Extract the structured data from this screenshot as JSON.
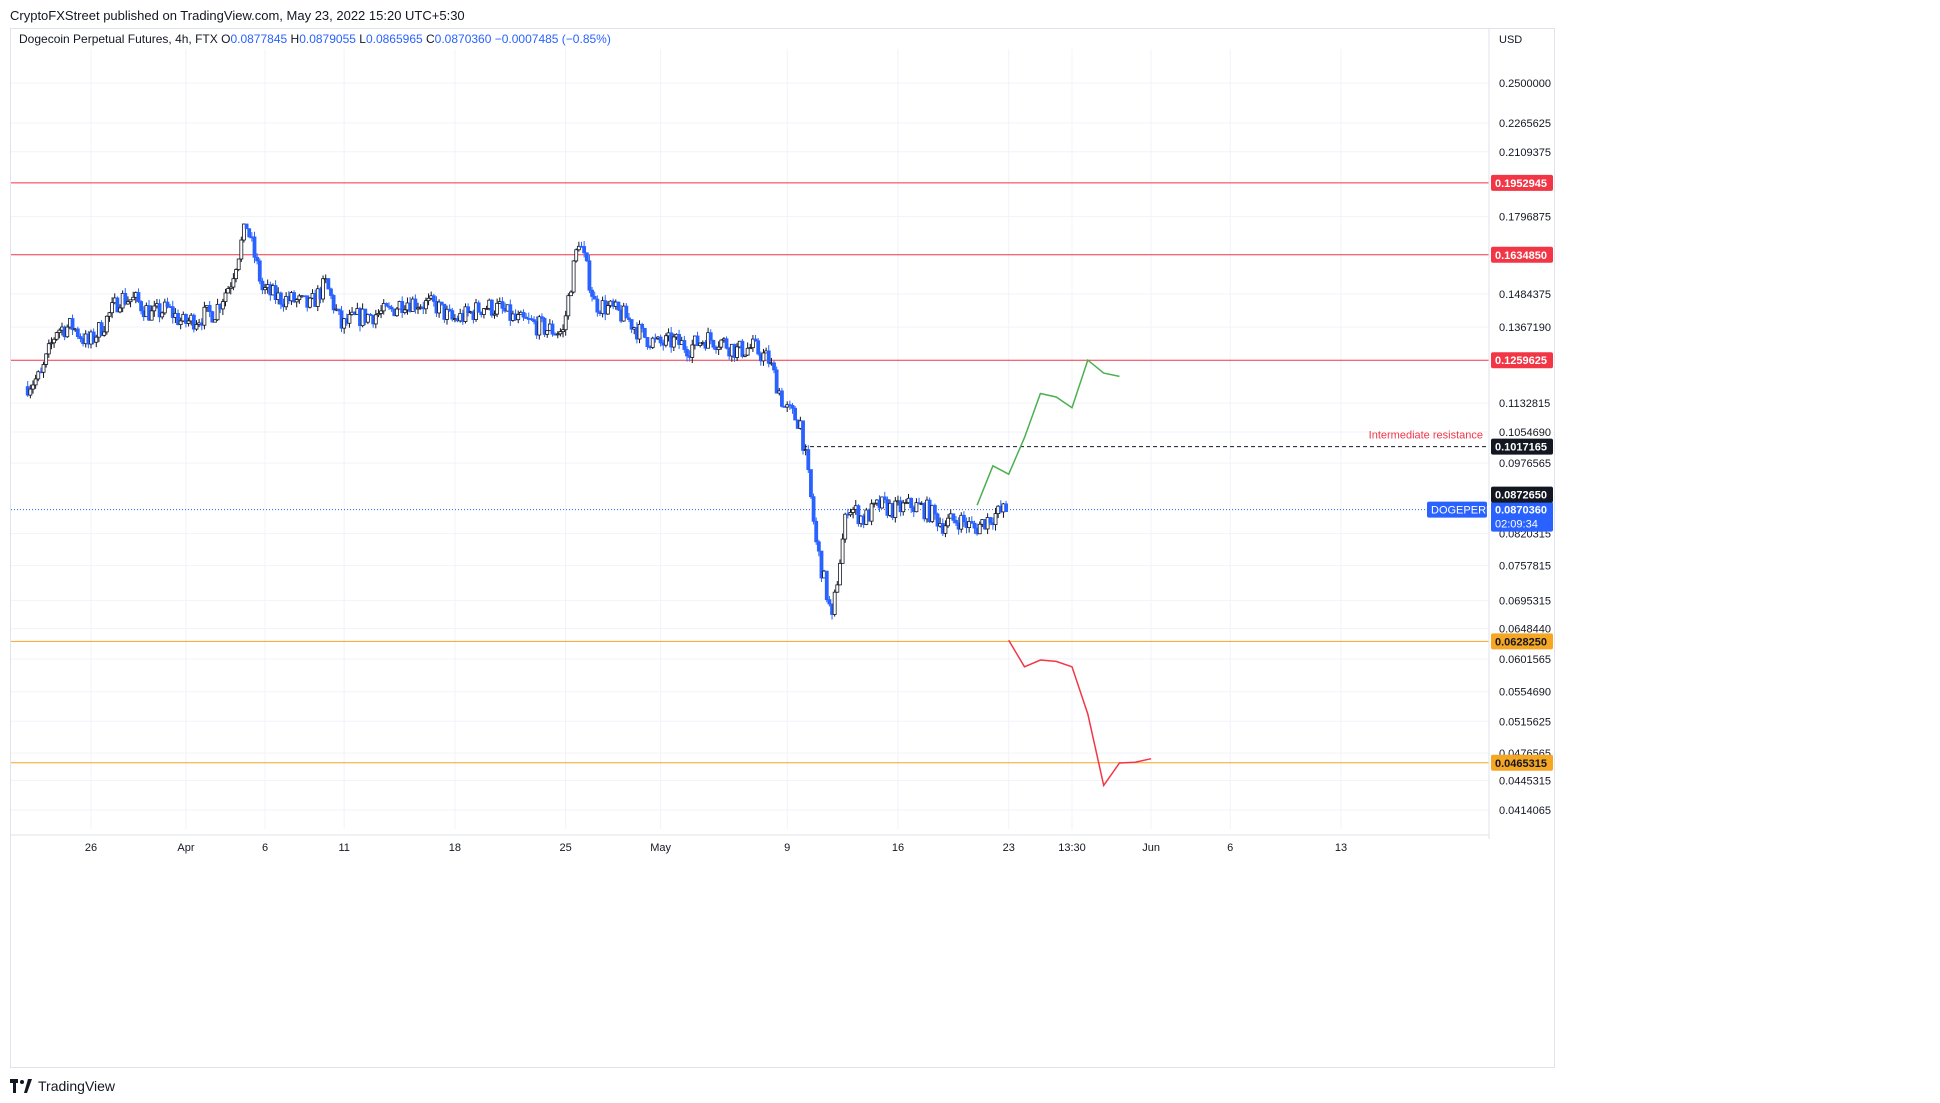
{
  "header": {
    "publisher_line": "CryptoFXStreet published on TradingView.com, May 23, 2022 15:20 UTC+5:30"
  },
  "footer": {
    "brand": "TradingView"
  },
  "colors": {
    "up_candle": "#131722",
    "down_candle": "#2962ff",
    "resistance_red": "#f23645",
    "support_orange": "#f5a623",
    "bull_path": "#4caf50",
    "bear_path": "#f23645",
    "last_price_blue": "#2962ff",
    "grid": "#f0f3fa"
  },
  "chart_data": {
    "type": "candlestick",
    "title": "Dogecoin Perpetual Futures, 4h, FTX",
    "ohlc_header": {
      "o_label": "O",
      "o_value": "0.0877845",
      "h_label": "H",
      "h_value": "0.0879055",
      "l_label": "L",
      "l_value": "0.0865965",
      "c_label": "C",
      "c_value": "0.0870360",
      "change": "−0.0007485 (−0.85%)"
    },
    "currency": "USD",
    "scale": "log",
    "ylim": [
      0.0395,
      0.272
    ],
    "y_ticks": [
      "0.2500000",
      "0.2265625",
      "0.2109375",
      "0.1796875",
      "0.1484375",
      "0.1367190",
      "0.1132815",
      "0.1054690",
      "0.0976565",
      "0.0820315",
      "0.0757815",
      "0.0695315",
      "0.0648440",
      "0.0601565",
      "0.0554690",
      "0.0515625",
      "0.0476565",
      "0.0445315",
      "0.0414065"
    ],
    "x_ticks": [
      "26",
      "Apr",
      "6",
      "11",
      "18",
      "25",
      "May",
      "9",
      "16",
      "23",
      "13:30",
      "Jun",
      "6",
      "13"
    ],
    "price_path": [
      [
        "Mar 22",
        0.118
      ],
      [
        "Mar 23",
        0.121
      ],
      [
        "Mar 24",
        0.136
      ],
      [
        "Mar 25",
        0.137
      ],
      [
        "Mar 26",
        0.131
      ],
      [
        "Mar 27",
        0.138
      ],
      [
        "Mar 28",
        0.147
      ],
      [
        "Mar 29",
        0.146
      ],
      [
        "Mar 30",
        0.141
      ],
      [
        "Mar 31",
        0.143
      ],
      [
        "Apr 1",
        0.138
      ],
      [
        "Apr 2",
        0.14
      ],
      [
        "Apr 3",
        0.142
      ],
      [
        "Apr 4",
        0.153
      ],
      [
        "Apr 5",
        0.176
      ],
      [
        "Apr 6",
        0.15
      ],
      [
        "Apr 7",
        0.147
      ],
      [
        "Apr 8",
        0.146
      ],
      [
        "Apr 9",
        0.144
      ],
      [
        "Apr 10",
        0.152
      ],
      [
        "Apr 11",
        0.137
      ],
      [
        "Apr 12",
        0.14
      ],
      [
        "Apr 13",
        0.141
      ],
      [
        "Apr 14",
        0.142
      ],
      [
        "Apr 15",
        0.146
      ],
      [
        "Apr 16",
        0.145
      ],
      [
        "Apr 17",
        0.144
      ],
      [
        "Apr 18",
        0.139
      ],
      [
        "Apr 19",
        0.141
      ],
      [
        "Apr 20",
        0.144
      ],
      [
        "Apr 21",
        0.143
      ],
      [
        "Apr 22",
        0.139
      ],
      [
        "Apr 23",
        0.138
      ],
      [
        "Apr 24",
        0.136
      ],
      [
        "Apr 25",
        0.135
      ],
      [
        "Apr 26",
        0.17
      ],
      [
        "Apr 27",
        0.145
      ],
      [
        "Apr 28",
        0.143
      ],
      [
        "Apr 29",
        0.14
      ],
      [
        "Apr 30",
        0.134
      ],
      [
        "May 1",
        0.131
      ],
      [
        "May 2",
        0.132
      ],
      [
        "May 3",
        0.13
      ],
      [
        "May 4",
        0.133
      ],
      [
        "May 5",
        0.132
      ],
      [
        "May 6",
        0.129
      ],
      [
        "May 7",
        0.13
      ],
      [
        "May 8",
        0.126
      ],
      [
        "May 9",
        0.112
      ],
      [
        "May 10",
        0.108
      ],
      [
        "May 11",
        0.08
      ],
      [
        "May 12",
        0.066
      ],
      [
        "May 13",
        0.088
      ],
      [
        "May 14",
        0.085
      ],
      [
        "May 15",
        0.088
      ],
      [
        "May 16",
        0.087
      ],
      [
        "May 17",
        0.088
      ],
      [
        "May 18",
        0.087
      ],
      [
        "May 19",
        0.084
      ],
      [
        "May 20",
        0.085
      ],
      [
        "May 21",
        0.083
      ],
      [
        "May 22",
        0.0855
      ],
      [
        "May 23",
        0.087
      ]
    ],
    "horizontal_levels": [
      {
        "value": 0.1952945,
        "label": "0.1952945",
        "color": "#f23645",
        "style": "solid"
      },
      {
        "value": 0.163485,
        "label": "0.1634850",
        "color": "#f23645",
        "style": "solid"
      },
      {
        "value": 0.1259625,
        "label": "0.1259625",
        "color": "#f23645",
        "style": "solid"
      },
      {
        "value": 0.1017165,
        "label": "0.1017165",
        "color": "#131722",
        "style": "dashed"
      },
      {
        "value": 0.062825,
        "label": "0.0628250",
        "color": "#f5a623",
        "style": "solid"
      },
      {
        "value": 0.0465315,
        "label": "0.0465315",
        "color": "#f5a623",
        "style": "solid"
      }
    ],
    "annotations": [
      {
        "text": "Intermediate resistance",
        "value": 0.1017165,
        "color": "#f23645"
      }
    ],
    "last_price": {
      "symbol": "DOGEPERP",
      "value": "0.0870360",
      "countdown": "02:09:34",
      "value_num": 0.087036
    },
    "marker_price": {
      "value": "0.0872650",
      "value_num": 0.087265
    },
    "bull_scenario": [
      [
        "May 21",
        0.088
      ],
      [
        "May 22",
        0.097
      ],
      [
        "May 23",
        0.095
      ],
      [
        "May 24",
        0.104
      ],
      [
        "May 25",
        0.116
      ],
      [
        "May 26",
        0.115
      ],
      [
        "May 27",
        0.112
      ],
      [
        "May 28",
        0.126
      ],
      [
        "May 29",
        0.122
      ],
      [
        "May 30",
        0.121
      ]
    ],
    "bear_scenario": [
      [
        "May 23",
        0.063
      ],
      [
        "May 24",
        0.059
      ],
      [
        "May 25",
        0.06
      ],
      [
        "May 26",
        0.0598
      ],
      [
        "May 27",
        0.059
      ],
      [
        "May 28",
        0.0525
      ],
      [
        "May 29",
        0.044
      ],
      [
        "May 30",
        0.0465
      ],
      [
        "May 31",
        0.0466
      ],
      [
        "Jun 1",
        0.047
      ]
    ]
  }
}
